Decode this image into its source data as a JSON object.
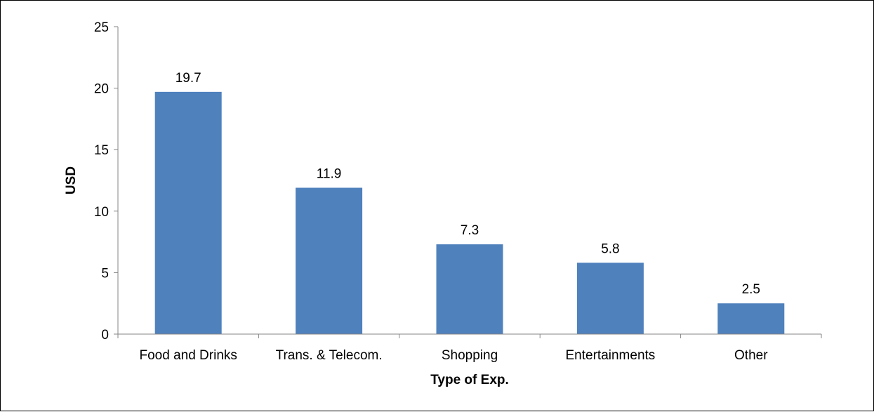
{
  "chart_data": {
    "type": "bar",
    "categories": [
      "Food and Drinks",
      "Trans. & Telecom.",
      "Shopping",
      "Entertainments",
      "Other"
    ],
    "values": [
      19.7,
      11.9,
      7.3,
      5.8,
      2.5
    ],
    "data_labels": [
      "19.7",
      "11.9",
      "7.3",
      "5.8",
      "2.5"
    ],
    "xlabel": "Type of Exp.",
    "ylabel": "USD",
    "ylim": [
      0,
      25
    ],
    "yticks": [
      0,
      5,
      10,
      15,
      20,
      25
    ],
    "grid": false,
    "legend": "none",
    "bar_color": "#4F81BD",
    "axis_color": "#868686"
  }
}
